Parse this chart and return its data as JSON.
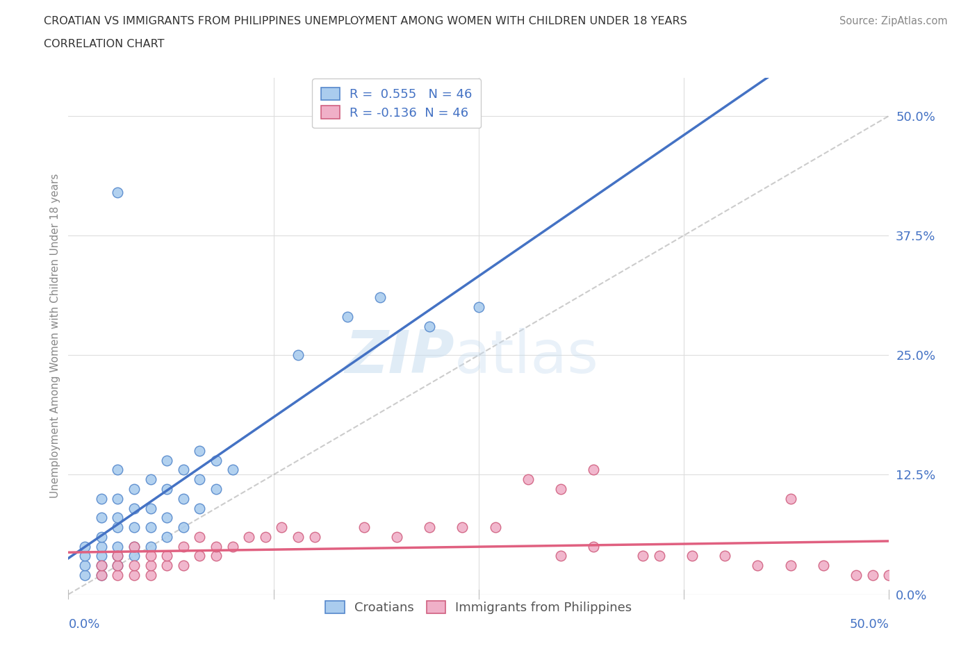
{
  "title_line1": "CROATIAN VS IMMIGRANTS FROM PHILIPPINES UNEMPLOYMENT AMONG WOMEN WITH CHILDREN UNDER 18 YEARS",
  "title_line2": "CORRELATION CHART",
  "source": "Source: ZipAtlas.com",
  "ylabel": "Unemployment Among Women with Children Under 18 years",
  "yticks_labels": [
    "0.0%",
    "12.5%",
    "25.0%",
    "37.5%",
    "50.0%"
  ],
  "ytick_vals": [
    0.0,
    0.125,
    0.25,
    0.375,
    0.5
  ],
  "xlim": [
    0.0,
    0.5
  ],
  "ylim": [
    0.0,
    0.54
  ],
  "r_croatian": 0.555,
  "n_croatian": 46,
  "r_philippines": -0.136,
  "n_philippines": 46,
  "color_croatian_fill": "#aaccee",
  "color_croatian_edge": "#5588cc",
  "color_philippines_fill": "#f0b0c8",
  "color_philippines_edge": "#d06080",
  "color_blue_line": "#4472c4",
  "color_pink_line": "#e06080",
  "color_diag": "#aaaaaa",
  "background_color": "#ffffff",
  "grid_color": "#dddddd",
  "tick_label_color": "#4472c4",
  "ylabel_color": "#888888",
  "title_color": "#333333",
  "source_color": "#888888",
  "watermark_zip_color": "#c8ddf0",
  "watermark_atlas_color": "#c8ddf0",
  "legend_edge_color": "#cccccc",
  "bottom_legend_color": "#555555",
  "croatian_x": [
    0.01,
    0.01,
    0.01,
    0.01,
    0.02,
    0.02,
    0.02,
    0.02,
    0.02,
    0.02,
    0.02,
    0.03,
    0.03,
    0.03,
    0.03,
    0.03,
    0.03,
    0.03,
    0.04,
    0.04,
    0.04,
    0.04,
    0.04,
    0.05,
    0.05,
    0.05,
    0.05,
    0.06,
    0.06,
    0.06,
    0.06,
    0.07,
    0.07,
    0.07,
    0.08,
    0.08,
    0.08,
    0.09,
    0.09,
    0.1,
    0.03,
    0.14,
    0.17,
    0.19,
    0.22,
    0.25
  ],
  "croatian_y": [
    0.02,
    0.03,
    0.04,
    0.05,
    0.02,
    0.03,
    0.04,
    0.05,
    0.06,
    0.08,
    0.1,
    0.03,
    0.04,
    0.05,
    0.07,
    0.08,
    0.1,
    0.13,
    0.04,
    0.05,
    0.07,
    0.09,
    0.11,
    0.05,
    0.07,
    0.09,
    0.12,
    0.06,
    0.08,
    0.11,
    0.14,
    0.07,
    0.1,
    0.13,
    0.09,
    0.12,
    0.15,
    0.11,
    0.14,
    0.13,
    0.42,
    0.25,
    0.29,
    0.31,
    0.28,
    0.3
  ],
  "philippines_x": [
    0.02,
    0.02,
    0.03,
    0.03,
    0.03,
    0.04,
    0.04,
    0.04,
    0.05,
    0.05,
    0.05,
    0.06,
    0.06,
    0.07,
    0.07,
    0.08,
    0.08,
    0.09,
    0.09,
    0.1,
    0.11,
    0.12,
    0.13,
    0.14,
    0.15,
    0.18,
    0.2,
    0.22,
    0.24,
    0.26,
    0.3,
    0.32,
    0.35,
    0.36,
    0.38,
    0.4,
    0.42,
    0.44,
    0.46,
    0.48,
    0.5,
    0.28,
    0.3,
    0.32,
    0.44,
    0.49
  ],
  "philippines_y": [
    0.02,
    0.03,
    0.02,
    0.03,
    0.04,
    0.02,
    0.03,
    0.05,
    0.02,
    0.03,
    0.04,
    0.03,
    0.04,
    0.03,
    0.05,
    0.04,
    0.06,
    0.04,
    0.05,
    0.05,
    0.06,
    0.06,
    0.07,
    0.06,
    0.06,
    0.07,
    0.06,
    0.07,
    0.07,
    0.07,
    0.04,
    0.05,
    0.04,
    0.04,
    0.04,
    0.04,
    0.03,
    0.03,
    0.03,
    0.02,
    0.02,
    0.12,
    0.11,
    0.13,
    0.1,
    0.02
  ]
}
